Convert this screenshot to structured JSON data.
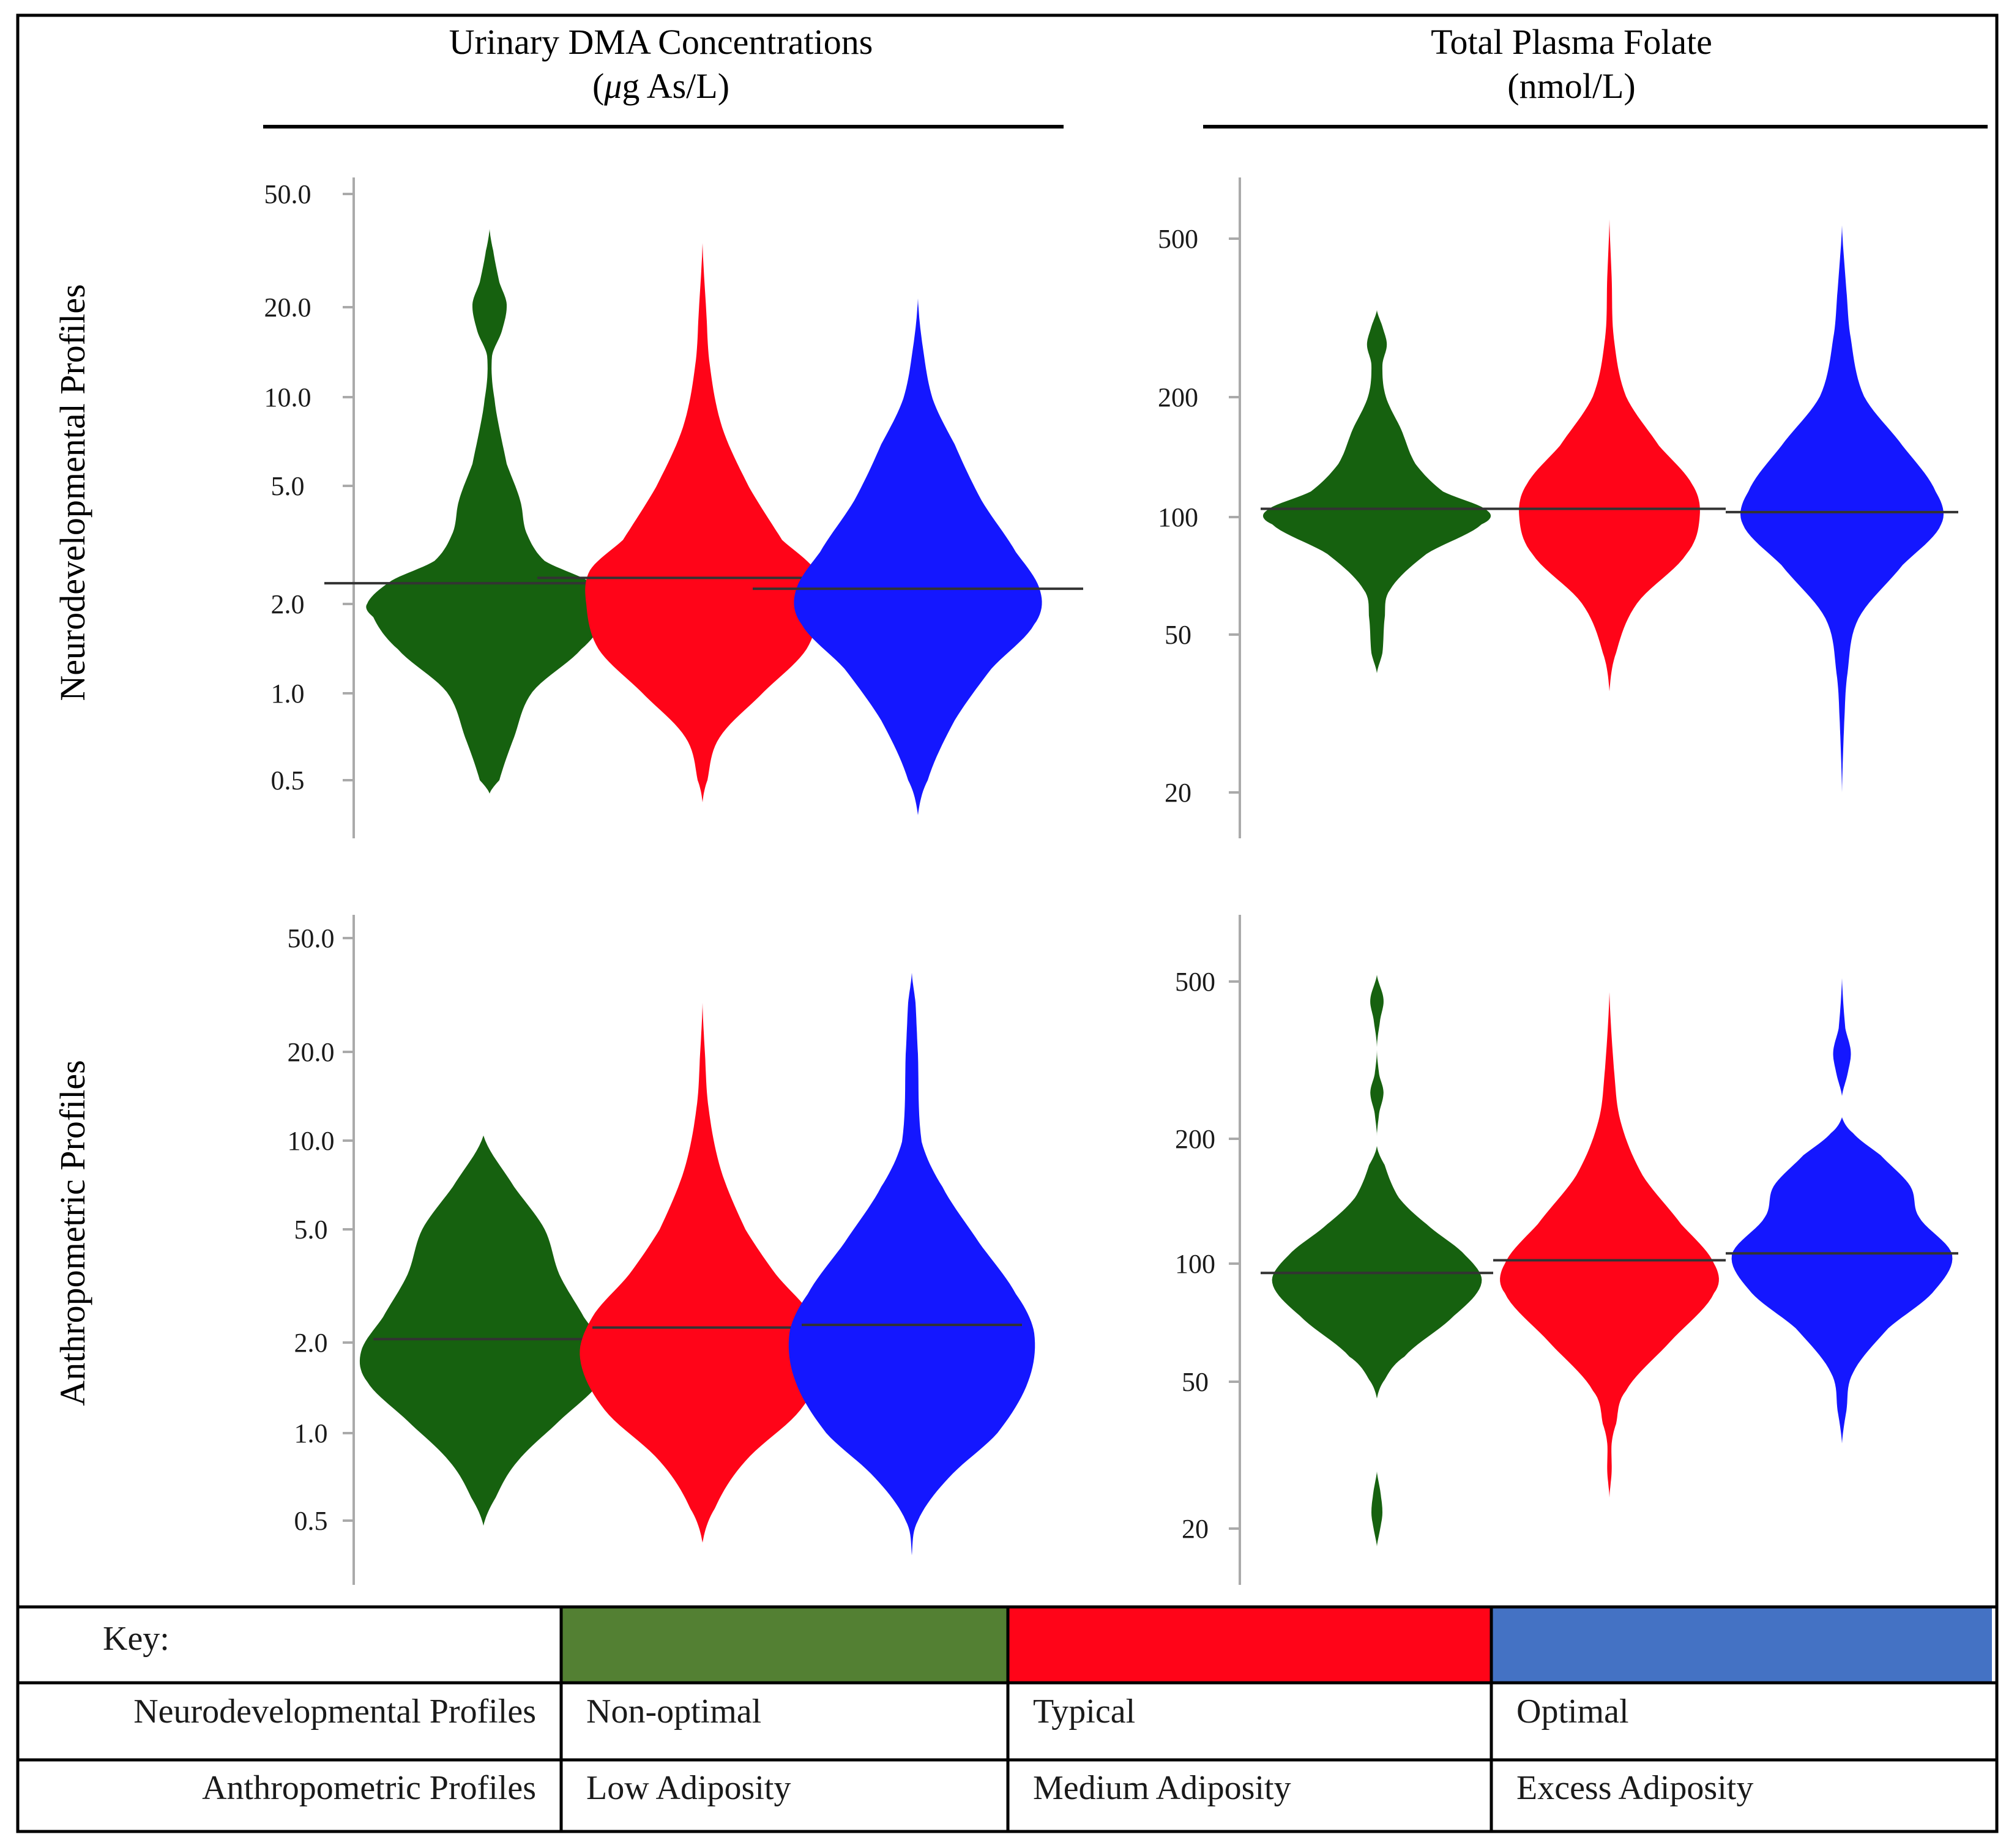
{
  "column_titles": [
    {
      "line1": "Urinary DMA Concentrations",
      "line2_unit": "g As/L",
      "line2_mu": "μ"
    },
    {
      "line1": "Total Plasma Folate",
      "line2": "(nmol/L)"
    }
  ],
  "row_titles": [
    "Neurodevelopmental Profiles",
    "Anthropometric Profiles"
  ],
  "colors": {
    "green": "#16610f",
    "red": "#ff0418",
    "blue": "#1417ff",
    "key_green": "#538033",
    "key_red": "#ff0418",
    "key_blue": "#4472c4",
    "median_line": "#333333",
    "axis": "#aaaaaa",
    "border": "#000000"
  },
  "chart_data": [
    {
      "type": "violin",
      "panel": "Neurodevelopmental / Urinary DMA",
      "scale": "log",
      "ylim": [
        0.4,
        58
      ],
      "ticks": [
        0.5,
        1.0,
        2.0,
        5.0,
        10.0,
        20.0,
        50.0
      ],
      "tick_labels": [
        "0.5",
        "1.0",
        "2.0",
        "5.0",
        "10.0",
        "20.0",
        "50.0"
      ],
      "groups": [
        {
          "name": "Non-optimal",
          "color": "green",
          "median": 2.35,
          "min": 0.45,
          "max": 38,
          "density": [
            [
              0.45,
              0
            ],
            [
              0.5,
              0.08
            ],
            [
              0.7,
              0.2
            ],
            [
              1.0,
              0.35
            ],
            [
              1.4,
              0.75
            ],
            [
              1.8,
              0.95
            ],
            [
              2.0,
              1.0
            ],
            [
              2.4,
              0.8
            ],
            [
              2.8,
              0.45
            ],
            [
              3.5,
              0.3
            ],
            [
              4.5,
              0.25
            ],
            [
              6,
              0.14
            ],
            [
              10,
              0.04
            ],
            [
              14,
              0.02
            ],
            [
              17,
              0.1
            ],
            [
              21,
              0.14
            ],
            [
              25,
              0.08
            ],
            [
              32,
              0.03
            ],
            [
              38,
              0
            ]
          ]
        },
        {
          "name": "Typical",
          "color": "red",
          "median": 2.45,
          "min": 0.42,
          "max": 34,
          "density": [
            [
              0.42,
              0
            ],
            [
              0.5,
              0.04
            ],
            [
              0.7,
              0.14
            ],
            [
              1.0,
              0.5
            ],
            [
              1.4,
              0.85
            ],
            [
              2.0,
              0.95
            ],
            [
              2.6,
              0.92
            ],
            [
              3.3,
              0.65
            ],
            [
              5,
              0.38
            ],
            [
              8,
              0.16
            ],
            [
              13,
              0.06
            ],
            [
              20,
              0.03
            ],
            [
              34,
              0
            ]
          ]
        },
        {
          "name": "Optimal",
          "color": "blue",
          "median": 2.25,
          "min": 0.38,
          "max": 22,
          "density": [
            [
              0.38,
              0
            ],
            [
              0.5,
              0.08
            ],
            [
              0.8,
              0.3
            ],
            [
              1.2,
              0.6
            ],
            [
              1.7,
              0.95
            ],
            [
              2.2,
              1.0
            ],
            [
              3.0,
              0.8
            ],
            [
              4.5,
              0.52
            ],
            [
              7,
              0.3
            ],
            [
              10,
              0.12
            ],
            [
              15,
              0.04
            ],
            [
              22,
              0
            ]
          ]
        }
      ]
    },
    {
      "type": "violin",
      "panel": "Neurodevelopmental / Plasma Folate",
      "scale": "log",
      "ylim": [
        16,
        670
      ],
      "ticks": [
        20,
        50,
        100,
        200,
        500
      ],
      "tick_labels": [
        "20",
        "50",
        "100",
        "200",
        "500"
      ],
      "groups": [
        {
          "name": "Non-optimal",
          "color": "green",
          "median": 104,
          "min": 40,
          "max": 330,
          "density": [
            [
              40,
              0
            ],
            [
              45,
              0.05
            ],
            [
              55,
              0.07
            ],
            [
              65,
              0.12
            ],
            [
              80,
              0.45
            ],
            [
              95,
              0.95
            ],
            [
              103,
              1.0
            ],
            [
              115,
              0.6
            ],
            [
              135,
              0.35
            ],
            [
              165,
              0.22
            ],
            [
              200,
              0.08
            ],
            [
              240,
              0.05
            ],
            [
              270,
              0.09
            ],
            [
              300,
              0.05
            ],
            [
              330,
              0
            ]
          ]
        },
        {
          "name": "Typical",
          "color": "red",
          "median": 104,
          "min": 36,
          "max": 560,
          "density": [
            [
              36,
              0
            ],
            [
              45,
              0.06
            ],
            [
              60,
              0.25
            ],
            [
              80,
              0.7
            ],
            [
              100,
              0.82
            ],
            [
              120,
              0.75
            ],
            [
              150,
              0.45
            ],
            [
              200,
              0.15
            ],
            [
              280,
              0.04
            ],
            [
              400,
              0.02
            ],
            [
              560,
              0
            ]
          ]
        },
        {
          "name": "Optimal",
          "color": "blue",
          "median": 102,
          "min": 20,
          "max": 540,
          "density": [
            [
              20,
              0
            ],
            [
              30,
              0.02
            ],
            [
              40,
              0.05
            ],
            [
              55,
              0.15
            ],
            [
              75,
              0.55
            ],
            [
              95,
              0.9
            ],
            [
              115,
              0.85
            ],
            [
              150,
              0.55
            ],
            [
              200,
              0.2
            ],
            [
              280,
              0.08
            ],
            [
              370,
              0.04
            ],
            [
              540,
              0
            ]
          ]
        }
      ]
    },
    {
      "type": "violin",
      "panel": "Anthropometric / Urinary DMA",
      "scale": "log",
      "ylim": [
        0.4,
        58
      ],
      "ticks": [
        0.5,
        1.0,
        2.0,
        5.0,
        10.0,
        20.0,
        50.0
      ],
      "tick_labels": [
        "0.5",
        "1.0",
        "2.0",
        "5.0",
        "10.0",
        "20.0",
        "50.0"
      ],
      "groups": [
        {
          "name": "Low Adiposity",
          "color": "green",
          "median": 2.1,
          "min": 0.48,
          "max": 10.5,
          "density": [
            [
              0.48,
              0
            ],
            [
              0.6,
              0.1
            ],
            [
              0.8,
              0.28
            ],
            [
              1.1,
              0.62
            ],
            [
              1.5,
              0.95
            ],
            [
              1.9,
              1.0
            ],
            [
              2.5,
              0.82
            ],
            [
              3.5,
              0.62
            ],
            [
              5,
              0.5
            ],
            [
              7,
              0.25
            ],
            [
              10.5,
              0
            ]
          ]
        },
        {
          "name": "Medium Adiposity",
          "color": "red",
          "median": 2.3,
          "min": 0.42,
          "max": 30,
          "density": [
            [
              0.42,
              0
            ],
            [
              0.55,
              0.1
            ],
            [
              0.8,
              0.35
            ],
            [
              1.2,
              0.8
            ],
            [
              1.8,
              1.0
            ],
            [
              2.5,
              0.9
            ],
            [
              3.5,
              0.6
            ],
            [
              5,
              0.35
            ],
            [
              8,
              0.15
            ],
            [
              13,
              0.05
            ],
            [
              20,
              0.02
            ],
            [
              30,
              0
            ]
          ]
        },
        {
          "name": "Excess Adiposity",
          "color": "blue",
          "median": 2.35,
          "min": 0.38,
          "max": 38,
          "density": [
            [
              0.38,
              0
            ],
            [
              0.5,
              0.05
            ],
            [
              0.7,
              0.3
            ],
            [
              1.0,
              0.7
            ],
            [
              1.5,
              0.95
            ],
            [
              2.2,
              1.0
            ],
            [
              3.0,
              0.85
            ],
            [
              4.5,
              0.55
            ],
            [
              7,
              0.25
            ],
            [
              10,
              0.08
            ],
            [
              20,
              0.05
            ],
            [
              30,
              0.03
            ],
            [
              38,
              0
            ]
          ]
        }
      ]
    },
    {
      "type": "violin",
      "panel": "Anthropometric / Plasma Folate",
      "scale": "log",
      "ylim": [
        16,
        670
      ],
      "ticks": [
        20,
        50,
        100,
        200,
        500
      ],
      "tick_labels": [
        "20",
        "50",
        "100",
        "200",
        "500"
      ],
      "groups": [
        {
          "name": "Low Adiposity",
          "color": "green",
          "median": 90,
          "min": 18,
          "max": 520,
          "density": [
            [
              18,
              0
            ],
            [
              20,
              0.03
            ],
            [
              22,
              0.05
            ],
            [
              25,
              0.03
            ],
            [
              28,
              0
            ],
            [
              43,
              0
            ],
            [
              48,
              0.07
            ],
            [
              55,
              0.25
            ],
            [
              70,
              0.7
            ],
            [
              85,
              0.95
            ],
            [
              100,
              0.8
            ],
            [
              120,
              0.45
            ],
            [
              140,
              0.2
            ],
            [
              170,
              0.07
            ],
            [
              190,
              0
            ],
            [
              230,
              0.02
            ],
            [
              260,
              0.06
            ],
            [
              290,
              0.02
            ],
            [
              340,
              0
            ],
            [
              400,
              0.03
            ],
            [
              450,
              0.06
            ],
            [
              520,
              0
            ]
          ]
        },
        {
          "name": "Medium Adiposity",
          "color": "red",
          "median": 97,
          "min": 24,
          "max": 470,
          "density": [
            [
              24,
              0
            ],
            [
              28,
              0.02
            ],
            [
              33,
              0.02
            ],
            [
              37,
              0.06
            ],
            [
              45,
              0.15
            ],
            [
              60,
              0.55
            ],
            [
              80,
              0.95
            ],
            [
              95,
              0.95
            ],
            [
              120,
              0.65
            ],
            [
              160,
              0.3
            ],
            [
              220,
              0.1
            ],
            [
              300,
              0.04
            ],
            [
              470,
              0
            ]
          ]
        },
        {
          "name": "Excess Adiposity",
          "color": "blue",
          "median": 101,
          "min": 33,
          "max": 510,
          "density": [
            [
              33,
              0
            ],
            [
              40,
              0.04
            ],
            [
              50,
              0.1
            ],
            [
              65,
              0.42
            ],
            [
              80,
              0.82
            ],
            [
              100,
              1.0
            ],
            [
              125,
              0.7
            ],
            [
              150,
              0.62
            ],
            [
              180,
              0.35
            ],
            [
              205,
              0.1
            ],
            [
              225,
              0
            ],
            [
              255,
              0
            ],
            [
              290,
              0.05
            ],
            [
              330,
              0.08
            ],
            [
              380,
              0.03
            ],
            [
              510,
              0
            ]
          ]
        }
      ]
    }
  ],
  "key": {
    "title": "Key:",
    "rows": [
      {
        "label": "Neurodevelopmental Profiles",
        "values": [
          "Non-optimal",
          "Typical",
          "Optimal"
        ]
      },
      {
        "label": "Anthropometric Profiles",
        "values": [
          "Low Adiposity",
          "Medium Adiposity",
          "Excess Adiposity"
        ]
      }
    ]
  }
}
